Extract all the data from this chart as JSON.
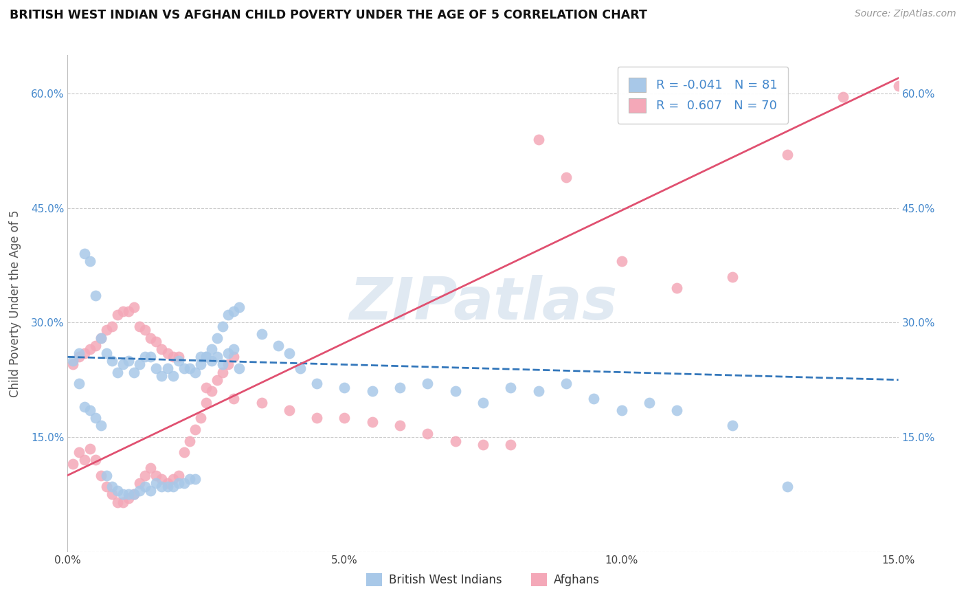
{
  "title": "BRITISH WEST INDIAN VS AFGHAN CHILD POVERTY UNDER THE AGE OF 5 CORRELATION CHART",
  "source": "Source: ZipAtlas.com",
  "ylabel": "Child Poverty Under the Age of 5",
  "xlim": [
    0.0,
    0.15
  ],
  "ylim": [
    0.0,
    0.65
  ],
  "xticks": [
    0.0,
    0.05,
    0.1,
    0.15
  ],
  "yticks": [
    0.0,
    0.15,
    0.3,
    0.45,
    0.6
  ],
  "blue_R": -0.041,
  "blue_N": 81,
  "pink_R": 0.607,
  "pink_N": 70,
  "blue_color": "#a8c8e8",
  "pink_color": "#f4a8b8",
  "blue_line_color": "#3377bb",
  "pink_line_color": "#e05070",
  "grid_color": "#cccccc",
  "background_color": "#ffffff",
  "watermark": "ZIPatlas",
  "watermark_color": "#c8d8e8",
  "legend_label_blue": "British West Indians",
  "legend_label_pink": "Afghans",
  "tick_color": "#4488cc",
  "blue_scatter_x": [
    0.002,
    0.003,
    0.004,
    0.005,
    0.006,
    0.007,
    0.008,
    0.009,
    0.01,
    0.011,
    0.012,
    0.013,
    0.014,
    0.015,
    0.016,
    0.017,
    0.018,
    0.019,
    0.02,
    0.021,
    0.022,
    0.023,
    0.024,
    0.025,
    0.026,
    0.027,
    0.028,
    0.029,
    0.03,
    0.031,
    0.002,
    0.003,
    0.004,
    0.005,
    0.006,
    0.007,
    0.008,
    0.009,
    0.01,
    0.011,
    0.012,
    0.013,
    0.014,
    0.015,
    0.016,
    0.017,
    0.018,
    0.019,
    0.02,
    0.021,
    0.022,
    0.023,
    0.024,
    0.025,
    0.026,
    0.027,
    0.028,
    0.029,
    0.03,
    0.031,
    0.035,
    0.038,
    0.04,
    0.042,
    0.045,
    0.05,
    0.055,
    0.06,
    0.065,
    0.07,
    0.075,
    0.08,
    0.085,
    0.09,
    0.095,
    0.1,
    0.105,
    0.11,
    0.12,
    0.13,
    0.001
  ],
  "blue_scatter_y": [
    0.26,
    0.39,
    0.38,
    0.335,
    0.28,
    0.26,
    0.25,
    0.235,
    0.245,
    0.25,
    0.235,
    0.245,
    0.255,
    0.255,
    0.24,
    0.23,
    0.24,
    0.23,
    0.25,
    0.24,
    0.24,
    0.235,
    0.245,
    0.255,
    0.25,
    0.255,
    0.245,
    0.26,
    0.265,
    0.24,
    0.22,
    0.19,
    0.185,
    0.175,
    0.165,
    0.1,
    0.085,
    0.08,
    0.075,
    0.075,
    0.075,
    0.08,
    0.085,
    0.08,
    0.09,
    0.085,
    0.085,
    0.085,
    0.09,
    0.09,
    0.095,
    0.095,
    0.255,
    0.255,
    0.265,
    0.28,
    0.295,
    0.31,
    0.315,
    0.32,
    0.285,
    0.27,
    0.26,
    0.24,
    0.22,
    0.215,
    0.21,
    0.215,
    0.22,
    0.21,
    0.195,
    0.215,
    0.21,
    0.22,
    0.2,
    0.185,
    0.195,
    0.185,
    0.165,
    0.085,
    0.25
  ],
  "pink_scatter_x": [
    0.001,
    0.002,
    0.003,
    0.004,
    0.005,
    0.006,
    0.007,
    0.008,
    0.009,
    0.01,
    0.011,
    0.012,
    0.013,
    0.014,
    0.015,
    0.016,
    0.017,
    0.018,
    0.019,
    0.02,
    0.021,
    0.022,
    0.023,
    0.024,
    0.025,
    0.026,
    0.027,
    0.028,
    0.029,
    0.03,
    0.001,
    0.002,
    0.003,
    0.004,
    0.005,
    0.006,
    0.007,
    0.008,
    0.009,
    0.01,
    0.011,
    0.012,
    0.013,
    0.014,
    0.015,
    0.016,
    0.017,
    0.018,
    0.019,
    0.02,
    0.025,
    0.03,
    0.035,
    0.04,
    0.045,
    0.05,
    0.055,
    0.06,
    0.065,
    0.07,
    0.075,
    0.08,
    0.085,
    0.09,
    0.1,
    0.11,
    0.12,
    0.13,
    0.14,
    0.15
  ],
  "pink_scatter_y": [
    0.115,
    0.13,
    0.12,
    0.135,
    0.12,
    0.1,
    0.085,
    0.075,
    0.065,
    0.065,
    0.07,
    0.075,
    0.09,
    0.1,
    0.11,
    0.1,
    0.095,
    0.09,
    0.095,
    0.1,
    0.13,
    0.145,
    0.16,
    0.175,
    0.195,
    0.21,
    0.225,
    0.235,
    0.245,
    0.255,
    0.245,
    0.255,
    0.26,
    0.265,
    0.27,
    0.28,
    0.29,
    0.295,
    0.31,
    0.315,
    0.315,
    0.32,
    0.295,
    0.29,
    0.28,
    0.275,
    0.265,
    0.26,
    0.255,
    0.255,
    0.215,
    0.2,
    0.195,
    0.185,
    0.175,
    0.175,
    0.17,
    0.165,
    0.155,
    0.145,
    0.14,
    0.14,
    0.54,
    0.49,
    0.38,
    0.345,
    0.36,
    0.52,
    0.595,
    0.61
  ]
}
